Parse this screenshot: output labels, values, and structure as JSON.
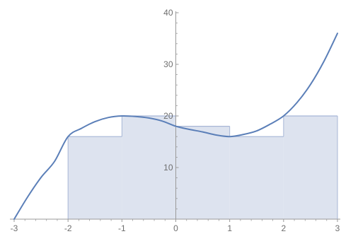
{
  "chart_data": {
    "type": "area",
    "title": "",
    "xlabel": "",
    "ylabel": "",
    "xlim": [
      -3,
      3
    ],
    "ylim": [
      0,
      40
    ],
    "x_ticks": [
      {
        "value": -3,
        "label": "-3"
      },
      {
        "value": -2,
        "label": "-2"
      },
      {
        "value": -1,
        "label": "-1"
      },
      {
        "value": 0,
        "label": "0"
      },
      {
        "value": 1,
        "label": "1"
      },
      {
        "value": 2,
        "label": "2"
      },
      {
        "value": 3,
        "label": "3"
      }
    ],
    "y_ticks": [
      {
        "value": 10,
        "label": "10"
      },
      {
        "value": 20,
        "label": "20"
      },
      {
        "value": 30,
        "label": "30"
      },
      {
        "value": 40,
        "label": "40"
      }
    ],
    "grid": false,
    "series": [
      {
        "kind": "curve",
        "x": [
          -3,
          -2.75,
          -2.5,
          -2.25,
          -2,
          -1.75,
          -1.5,
          -1.25,
          -1,
          -0.75,
          -0.5,
          -0.25,
          0,
          0.25,
          0.5,
          0.75,
          1,
          1.25,
          1.5,
          1.75,
          2,
          2.25,
          2.5,
          2.75,
          3
        ],
        "values": [
          0,
          4.3,
          8.1,
          11.2,
          16,
          17.6,
          18.9,
          19.7,
          20,
          19.9,
          19.6,
          19,
          18,
          17.4,
          16.9,
          16.3,
          16,
          16.4,
          17.1,
          18.4,
          20,
          22.6,
          26.1,
          30.6,
          36
        ]
      },
      {
        "kind": "steps",
        "edges": [
          -2,
          -1,
          0,
          1,
          2,
          3
        ],
        "values": [
          16,
          20,
          18,
          16,
          20
        ]
      }
    ],
    "colors": {
      "curve": "#5b7fb8",
      "fill": "#dde3ef",
      "step_line": "#a7b6d6",
      "axis": "#9a9a9a",
      "tick_label": "#6e6e6e"
    }
  }
}
